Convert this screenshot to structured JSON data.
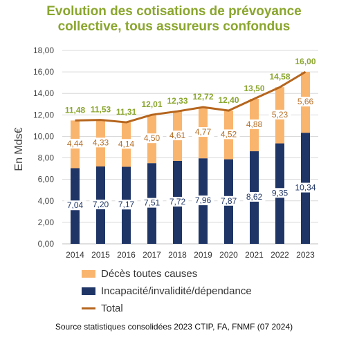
{
  "chart_data": {
    "type": "bar",
    "stacked": true,
    "title_lines": [
      "Evolution des cotisations de prévoyance",
      "collective, tous assureurs confondus"
    ],
    "ylabel": "En Mds€",
    "ylim": [
      0,
      18
    ],
    "yticks": [
      "0,00",
      "2,00",
      "4,00",
      "6,00",
      "8,00",
      "10,00",
      "12,00",
      "14,00",
      "16,00",
      "18,00"
    ],
    "grid": true,
    "legend_position": "bottom",
    "categories": [
      "2014",
      "2015",
      "2016",
      "2017",
      "2018",
      "2019",
      "2020",
      "2021",
      "2022",
      "2023"
    ],
    "series": [
      {
        "name": "Incapacité/invalidité/dépendance",
        "kind": "bar",
        "color": "#1f3566",
        "values": [
          7.04,
          7.2,
          7.17,
          7.51,
          7.72,
          7.96,
          7.87,
          8.62,
          9.35,
          10.34
        ],
        "labels": [
          "7,04",
          "7,20",
          "7,17",
          "7,51",
          "7,72",
          "7,96",
          "7,87",
          "8,62",
          "9,35",
          "10,34"
        ]
      },
      {
        "name": "Décès toutes causes",
        "kind": "bar",
        "color": "#f9b56e",
        "label_color": "#b5702a",
        "values": [
          4.44,
          4.33,
          4.14,
          4.5,
          4.61,
          4.77,
          4.52,
          4.88,
          5.23,
          5.66
        ],
        "labels": [
          "4,44",
          "4,33",
          "4,14",
          "4,50",
          "4,61",
          "4,77",
          "4,52",
          "4,88",
          "5,23",
          "5,66"
        ]
      },
      {
        "name": "Total",
        "kind": "line",
        "color": "#b5651d",
        "label_color": "#8aa62e",
        "values": [
          11.48,
          11.53,
          11.31,
          12.01,
          12.33,
          12.72,
          12.4,
          13.5,
          14.58,
          16.0
        ],
        "labels": [
          "11,48",
          "11,53",
          "11,31",
          "12,01",
          "12,33",
          "12,72",
          "12,40",
          "13,50",
          "14,58",
          "16,00"
        ]
      }
    ],
    "legend_order": [
      "Décès toutes causes",
      "Incapacité/invalidité/dépendance",
      "Total"
    ]
  },
  "source": "Source statistiques consolidées 2023 CTIP, FA, FNMF (07 2024)"
}
